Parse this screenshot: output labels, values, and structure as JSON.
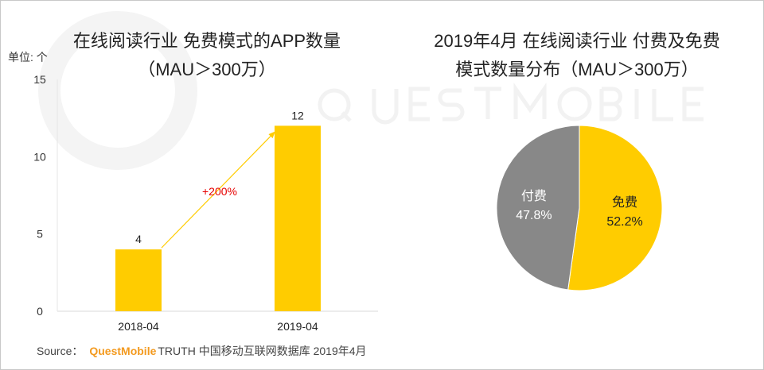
{
  "watermark": "QUESTMOBILE",
  "chart_data": [
    {
      "type": "bar",
      "title_line1": "在线阅读行业 免费模式的APP数量",
      "title_line2": "（MAU＞300万）",
      "unit_label": "单位: 个",
      "categories": [
        "2018-04",
        "2019-04"
      ],
      "values": [
        4,
        12
      ],
      "ylim": [
        0,
        15
      ],
      "yticks": [
        0,
        5,
        10,
        15
      ],
      "annotation": "+200%",
      "bar_color": "#ffcc00",
      "annotation_color": "#e60000"
    },
    {
      "type": "pie",
      "title_line1": "2019年4月 在线阅读行业 付费及免费",
      "title_line2": "模式数量分布（MAU＞300万）",
      "slices": [
        {
          "label": "免费",
          "value": 52.2,
          "display": "52.2%",
          "color": "#ffcc00"
        },
        {
          "label": "付费",
          "value": 47.8,
          "display": "47.8%",
          "color": "#888888"
        }
      ]
    }
  ],
  "source": {
    "prefix": "Source：",
    "brand": "QuestMobile",
    "text": "TRUTH 中国移动互联网数据库 2019年4月"
  }
}
